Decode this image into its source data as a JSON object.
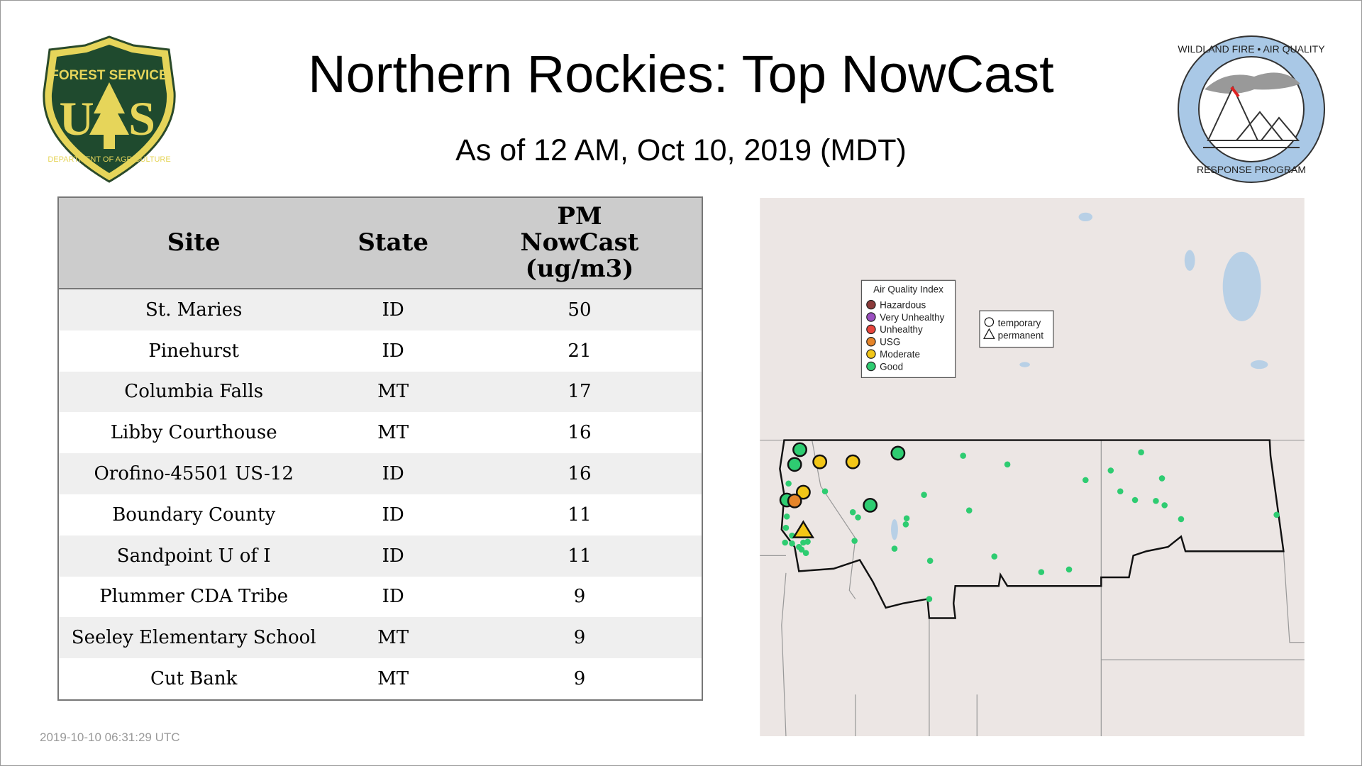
{
  "header": {
    "title": "Northern Rockies: Top NowCast",
    "subtitle": "As of 12 AM, Oct 10, 2019 (MDT)"
  },
  "logos": {
    "left": "Forest Service U S Department of Agriculture",
    "right": "Wildland Fire Air Quality Response Program"
  },
  "table": {
    "columns": [
      "Site",
      "State",
      "PM NowCast (ug/m3)"
    ],
    "column_lines": [
      "PM",
      "NowCast",
      "(ug/m3)"
    ],
    "rows": [
      {
        "site": "St. Maries",
        "state": "ID",
        "value": "50"
      },
      {
        "site": "Pinehurst",
        "state": "ID",
        "value": "21"
      },
      {
        "site": "Columbia Falls",
        "state": "MT",
        "value": "17"
      },
      {
        "site": "Libby Courthouse",
        "state": "MT",
        "value": "16"
      },
      {
        "site": "Orofino-45501 US-12",
        "state": "ID",
        "value": "16"
      },
      {
        "site": "Boundary County",
        "state": "ID",
        "value": "11"
      },
      {
        "site": "Sandpoint U of I",
        "state": "ID",
        "value": "11"
      },
      {
        "site": "Plummer CDA Tribe",
        "state": "ID",
        "value": "9"
      },
      {
        "site": "Seeley Elementary School",
        "state": "MT",
        "value": "9"
      },
      {
        "site": "Cut Bank",
        "state": "MT",
        "value": "9"
      }
    ]
  },
  "map": {
    "aqi_legend": {
      "title": "Air Quality Index",
      "items": [
        {
          "label": "Hazardous",
          "color": "#8b3a3a"
        },
        {
          "label": "Very Unhealthy",
          "color": "#9b4fc0"
        },
        {
          "label": "Unhealthy",
          "color": "#e8453c"
        },
        {
          "label": "USG",
          "color": "#e6852a"
        },
        {
          "label": "Moderate",
          "color": "#f2c617"
        },
        {
          "label": "Good",
          "color": "#2ecc71"
        }
      ]
    },
    "type_legend": [
      {
        "label": "temporary",
        "icon": "circle-icon"
      },
      {
        "label": "permanent",
        "icon": "triangle-icon"
      }
    ]
  },
  "footer": {
    "timestamp": "2019-10-10 06:31:29 UTC"
  }
}
